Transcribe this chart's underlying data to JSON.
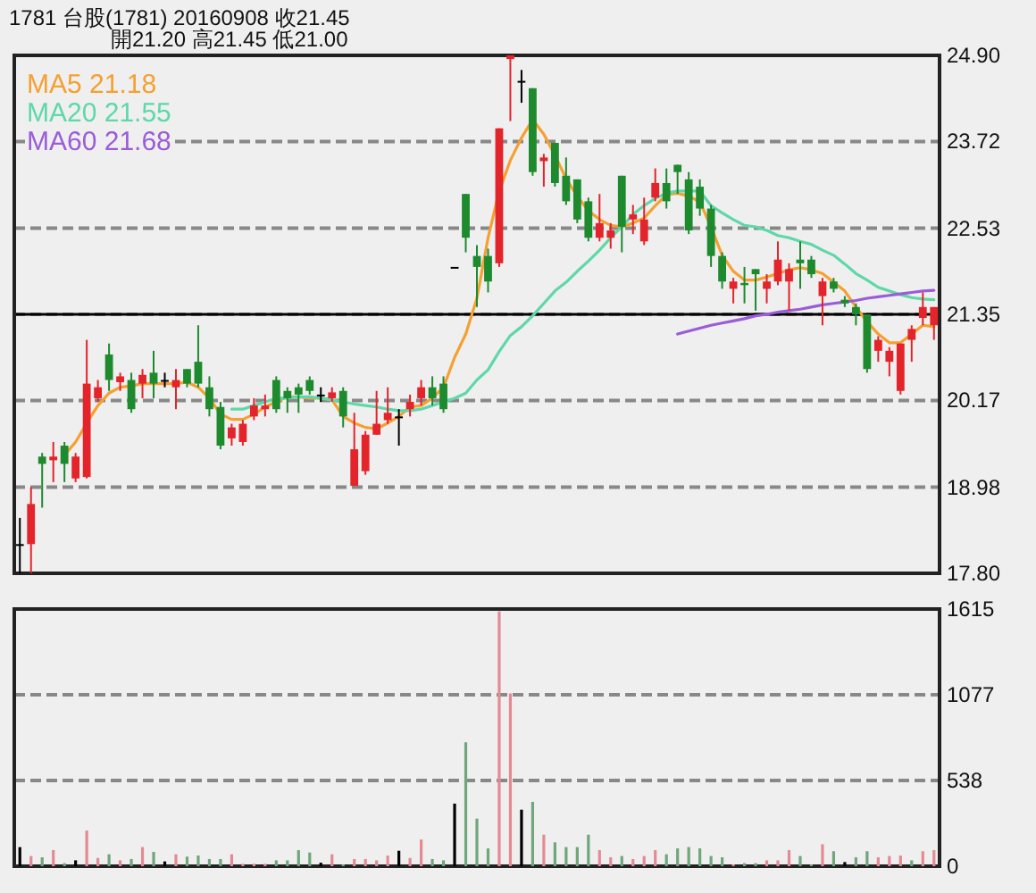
{
  "chart_data": [
    {
      "type": "candlestick",
      "title": "1781 台股(1781) 20160908 收21.45",
      "subtitle": "開21.20 高21.45 低21.00",
      "legend": "top left",
      "grid": "y",
      "tick_labels": "y",
      "ylim": [
        17.8,
        24.9
      ],
      "yticks": [
        {
          "value": 17.8,
          "label": "17.80"
        },
        {
          "value": 18.98,
          "label": "18.98"
        },
        {
          "value": 20.17,
          "label": "20.17"
        },
        {
          "value": 21.35,
          "label": "21.35"
        },
        {
          "value": 22.53,
          "label": "22.53"
        },
        {
          "value": 23.72,
          "label": "23.72"
        },
        {
          "value": 24.9,
          "label": "24.90"
        }
      ],
      "ref_lines": [
        {
          "axis": "y",
          "value": 21.35,
          "color": "#000000"
        }
      ],
      "categories": [
        null,
        null,
        null,
        null,
        null,
        null,
        null,
        null,
        null,
        null,
        null,
        null,
        null,
        null,
        null,
        null,
        null,
        null,
        null,
        null,
        null,
        null,
        null,
        null,
        null,
        null,
        null,
        null,
        null,
        null,
        null,
        null,
        null,
        null,
        null,
        null,
        null,
        null,
        null,
        null,
        null,
        null,
        null,
        null,
        null,
        null,
        null,
        null,
        null,
        null,
        null,
        null,
        null,
        null,
        null,
        null,
        null,
        null,
        null,
        null,
        null,
        null,
        null,
        null,
        null,
        null,
        null,
        null,
        null,
        null,
        null,
        null,
        null,
        null,
        null,
        null,
        null,
        null,
        null,
        null,
        null,
        null,
        null
      ],
      "ohlc": [
        [
          18.2,
          18.56,
          17.8,
          18.2
        ],
        [
          18.2,
          18.98,
          17.8,
          18.75
        ],
        [
          19.4,
          19.45,
          18.7,
          19.3
        ],
        [
          19.35,
          19.6,
          19.05,
          19.4
        ],
        [
          19.55,
          19.6,
          19.05,
          19.3
        ],
        [
          19.1,
          19.45,
          19.05,
          19.4
        ],
        [
          19.12,
          21.0,
          19.1,
          20.4
        ],
        [
          20.2,
          20.45,
          20.15,
          20.35
        ],
        [
          20.8,
          20.95,
          20.3,
          20.45
        ],
        [
          20.42,
          20.55,
          20.3,
          20.5
        ],
        [
          20.45,
          20.55,
          20.0,
          20.05
        ],
        [
          20.4,
          20.6,
          20.2,
          20.52
        ],
        [
          20.55,
          20.85,
          20.2,
          20.4
        ],
        [
          20.45,
          20.55,
          20.35,
          20.45
        ],
        [
          20.35,
          20.6,
          20.05,
          20.45
        ],
        [
          20.6,
          20.6,
          20.35,
          20.4
        ],
        [
          20.7,
          21.2,
          20.35,
          20.4
        ],
        [
          20.35,
          20.5,
          19.95,
          20.05
        ],
        [
          20.08,
          20.15,
          19.5,
          19.55
        ],
        [
          19.65,
          19.85,
          19.55,
          19.8
        ],
        [
          19.6,
          19.9,
          19.55,
          19.85
        ],
        [
          19.95,
          20.2,
          19.9,
          20.1
        ],
        [
          20.05,
          20.25,
          19.95,
          20.1
        ],
        [
          20.45,
          20.5,
          20.0,
          20.05
        ],
        [
          20.3,
          20.35,
          20.0,
          20.2
        ],
        [
          20.35,
          20.4,
          20.0,
          20.25
        ],
        [
          20.45,
          20.5,
          20.25,
          20.3
        ],
        [
          20.25,
          20.35,
          20.15,
          20.25
        ],
        [
          20.2,
          20.35,
          20.15,
          20.28
        ],
        [
          20.3,
          20.35,
          19.8,
          19.95
        ],
        [
          19.0,
          20.0,
          19.0,
          19.5
        ],
        [
          19.2,
          19.75,
          19.15,
          19.7
        ],
        [
          19.7,
          20.3,
          19.7,
          19.85
        ],
        [
          19.9,
          20.35,
          19.85,
          20.0
        ],
        [
          19.95,
          20.05,
          19.55,
          19.95
        ],
        [
          20.05,
          20.25,
          19.95,
          20.15
        ],
        [
          20.2,
          20.45,
          20.1,
          20.35
        ],
        [
          20.35,
          20.5,
          20.1,
          20.2
        ],
        [
          20.4,
          20.5,
          20.0,
          20.05
        ],
        [
          22.0,
          22.0,
          22.0,
          22.0
        ],
        [
          23.0,
          23.0,
          22.2,
          22.4
        ],
        [
          22.15,
          22.3,
          21.45,
          22.0
        ],
        [
          22.15,
          22.25,
          21.65,
          21.8
        ],
        [
          22.05,
          23.9,
          22.0,
          23.9
        ],
        [
          24.85,
          24.9,
          24.0,
          24.9
        ],
        [
          24.55,
          24.7,
          24.25,
          24.55
        ],
        [
          24.45,
          24.45,
          23.25,
          23.3
        ],
        [
          23.45,
          23.55,
          23.1,
          23.5
        ],
        [
          23.7,
          23.7,
          23.1,
          23.15
        ],
        [
          23.25,
          23.5,
          22.85,
          22.9
        ],
        [
          23.2,
          23.2,
          22.6,
          22.65
        ],
        [
          22.9,
          22.95,
          22.35,
          22.4
        ],
        [
          22.4,
          23.0,
          22.35,
          22.6
        ],
        [
          22.4,
          22.6,
          22.25,
          22.5
        ],
        [
          23.25,
          23.25,
          22.2,
          22.55
        ],
        [
          22.65,
          22.85,
          22.45,
          22.72
        ],
        [
          22.35,
          22.95,
          22.3,
          22.65
        ],
        [
          22.95,
          23.35,
          22.9,
          23.15
        ],
        [
          23.15,
          23.35,
          22.8,
          22.9
        ],
        [
          23.4,
          23.4,
          23.0,
          23.3
        ],
        [
          23.2,
          23.3,
          22.45,
          22.5
        ],
        [
          23.1,
          23.2,
          22.7,
          22.8
        ],
        [
          22.8,
          22.85,
          22.0,
          22.15
        ],
        [
          22.15,
          22.2,
          21.7,
          21.8
        ],
        [
          21.7,
          21.85,
          21.5,
          21.8
        ],
        [
          21.78,
          22.0,
          21.5,
          21.75
        ],
        [
          21.97,
          21.97,
          21.4,
          21.9
        ],
        [
          21.7,
          21.9,
          21.5,
          21.8
        ],
        [
          21.8,
          22.35,
          21.75,
          22.1
        ],
        [
          21.8,
          22.05,
          21.4,
          21.97
        ],
        [
          22.1,
          22.35,
          21.7,
          22.05
        ],
        [
          22.1,
          22.15,
          21.85,
          21.9
        ],
        [
          21.6,
          21.85,
          21.2,
          21.8
        ],
        [
          21.8,
          21.85,
          21.65,
          21.7
        ],
        [
          21.55,
          21.6,
          21.45,
          21.5
        ],
        [
          21.45,
          21.5,
          21.2,
          21.35
        ],
        [
          21.35,
          21.35,
          20.55,
          20.6
        ],
        [
          20.85,
          21.05,
          20.7,
          21.0
        ],
        [
          20.7,
          20.9,
          20.5,
          20.85
        ],
        [
          20.3,
          20.95,
          20.25,
          20.95
        ],
        [
          21.0,
          21.2,
          20.7,
          21.15
        ],
        [
          21.3,
          21.65,
          21.2,
          21.45
        ],
        [
          21.2,
          21.45,
          21.0,
          21.45
        ]
      ],
      "colors": [
        "#000000",
        "#e3242b",
        "#1e8a2e",
        "#e3242b",
        "#1e8a2e",
        "#e3242b",
        "#e3242b",
        "#e3242b",
        "#1e8a2e",
        "#e3242b",
        "#1e8a2e",
        "#e3242b",
        "#1e8a2e",
        "#000000",
        "#e3242b",
        "#1e8a2e",
        "#1e8a2e",
        "#1e8a2e",
        "#1e8a2e",
        "#e3242b",
        "#e3242b",
        "#e3242b",
        "#e3242b",
        "#1e8a2e",
        "#1e8a2e",
        "#1e8a2e",
        "#1e8a2e",
        "#000000",
        "#e3242b",
        "#1e8a2e",
        "#e3242b",
        "#e3242b",
        "#e3242b",
        "#e3242b",
        "#000000",
        "#e3242b",
        "#e3242b",
        "#1e8a2e",
        "#1e8a2e",
        "#000000",
        "#1e8a2e",
        "#1e8a2e",
        "#1e8a2e",
        "#e3242b",
        "#e3242b",
        "#000000",
        "#1e8a2e",
        "#e3242b",
        "#1e8a2e",
        "#1e8a2e",
        "#1e8a2e",
        "#1e8a2e",
        "#e3242b",
        "#e3242b",
        "#1e8a2e",
        "#e3242b",
        "#e3242b",
        "#e3242b",
        "#1e8a2e",
        "#1e8a2e",
        "#1e8a2e",
        "#1e8a2e",
        "#1e8a2e",
        "#1e8a2e",
        "#e3242b",
        "#1e8a2e",
        "#1e8a2e",
        "#e3242b",
        "#e3242b",
        "#e3242b",
        "#1e8a2e",
        "#1e8a2e",
        "#e3242b",
        "#1e8a2e",
        "#1e8a2e",
        "#1e8a2e",
        "#1e8a2e",
        "#e3242b",
        "#e3242b",
        "#e3242b",
        "#e3242b",
        "#e3242b",
        "#e3242b"
      ],
      "series": [
        {
          "name": "MA5 21.18",
          "color": "#f5a030",
          "type": "line",
          "values": [
            null,
            null,
            null,
            null,
            19.42,
            19.6,
            19.86,
            20.1,
            20.27,
            20.35,
            20.37,
            20.4,
            20.4,
            20.4,
            20.4,
            20.42,
            20.35,
            20.2,
            19.98,
            19.91,
            19.91,
            19.98,
            20.08,
            20.15,
            20.22,
            20.22,
            20.2,
            20.2,
            20.18,
            19.95,
            19.86,
            19.8,
            19.78,
            19.86,
            19.95,
            20.08,
            20.1,
            20.2,
            20.35,
            20.76,
            21.08,
            21.57,
            22.4,
            23.04,
            23.46,
            23.77,
            24.02,
            23.82,
            23.53,
            23.21,
            22.97,
            22.77,
            22.65,
            22.57,
            22.55,
            22.6,
            22.67,
            22.84,
            22.99,
            23.01,
            22.97,
            22.89,
            22.55,
            22.16,
            21.94,
            21.82,
            21.82,
            21.86,
            21.91,
            21.96,
            21.99,
            21.96,
            21.91,
            21.79,
            21.67,
            21.45,
            21.25,
            21.08,
            20.96,
            20.96,
            21.08,
            21.2,
            21.18
          ]
        },
        {
          "name": "MA20 21.55",
          "color": "#5ed8a8",
          "type": "line",
          "values": [
            null,
            null,
            null,
            null,
            null,
            null,
            null,
            null,
            null,
            null,
            null,
            null,
            null,
            null,
            null,
            null,
            null,
            null,
            null,
            20.05,
            20.05,
            20.1,
            20.15,
            20.2,
            20.2,
            20.22,
            20.22,
            20.2,
            20.18,
            20.15,
            20.12,
            20.1,
            20.08,
            20.05,
            20.03,
            20.03,
            20.05,
            20.1,
            20.15,
            20.2,
            20.27,
            20.45,
            20.59,
            20.84,
            21.06,
            21.18,
            21.33,
            21.5,
            21.67,
            21.79,
            21.94,
            22.08,
            22.23,
            22.4,
            22.55,
            22.72,
            22.84,
            22.94,
            23.01,
            23.04,
            23.04,
            23.04,
            22.84,
            22.74,
            22.65,
            22.57,
            22.55,
            22.5,
            22.43,
            22.4,
            22.35,
            22.31,
            22.23,
            22.16,
            22.04,
            21.91,
            21.82,
            21.72,
            21.67,
            21.62,
            21.58,
            21.56,
            21.55
          ]
        },
        {
          "name": "MA60 21.68",
          "color": "#9a5cd8",
          "type": "line",
          "values": [
            null,
            null,
            null,
            null,
            null,
            null,
            null,
            null,
            null,
            null,
            null,
            null,
            null,
            null,
            null,
            null,
            null,
            null,
            null,
            null,
            null,
            null,
            null,
            null,
            null,
            null,
            null,
            null,
            null,
            null,
            null,
            null,
            null,
            null,
            null,
            null,
            null,
            null,
            null,
            null,
            null,
            null,
            null,
            null,
            null,
            null,
            null,
            null,
            null,
            null,
            null,
            null,
            null,
            null,
            null,
            null,
            null,
            null,
            null,
            21.08,
            21.12,
            21.16,
            21.2,
            21.23,
            21.26,
            21.29,
            21.33,
            21.35,
            21.38,
            21.4,
            21.42,
            21.45,
            21.48,
            21.5,
            21.52,
            21.54,
            21.57,
            21.59,
            21.61,
            21.63,
            21.65,
            21.67,
            21.68
          ]
        }
      ]
    },
    {
      "type": "bar",
      "grid": "y",
      "tick_labels": "y",
      "ylim": [
        0,
        1615
      ],
      "yticks": [
        0,
        538,
        1077,
        1615
      ],
      "categories": [
        null,
        null,
        null,
        null,
        null,
        null,
        null,
        null,
        null,
        null,
        null,
        null,
        null,
        null,
        null,
        null,
        null,
        null,
        null,
        null,
        null,
        null,
        null,
        null,
        null,
        null,
        null,
        null,
        null,
        null,
        null,
        null,
        null,
        null,
        null,
        null,
        null,
        null,
        null,
        null,
        null,
        null,
        null,
        null,
        null,
        null,
        null,
        null,
        null,
        null,
        null,
        null,
        null,
        null,
        null,
        null,
        null,
        null,
        null,
        null,
        null,
        null,
        null,
        null,
        null,
        null,
        null,
        null,
        null,
        null,
        null,
        null,
        null,
        null,
        null,
        null,
        null,
        null,
        null,
        null,
        null,
        null,
        null
      ],
      "values": [
        120,
        64,
        56,
        101,
        19,
        37,
        224,
        52,
        75,
        37,
        45,
        120,
        90,
        30,
        75,
        60,
        67,
        45,
        45,
        75,
        15,
        15,
        15,
        37,
        37,
        101,
        86,
        22,
        75,
        11,
        45,
        45,
        37,
        67,
        97,
        52,
        168,
        45,
        37,
        393,
        778,
        299,
        112,
        1600,
        1085,
        355,
        404,
        198,
        150,
        120,
        120,
        198,
        101,
        56,
        64,
        45,
        64,
        101,
        75,
        112,
        120,
        112,
        64,
        56,
        11,
        19,
        19,
        37,
        37,
        101,
        64,
        11,
        138,
        94,
        26,
        56,
        94,
        56,
        64,
        67,
        37,
        94,
        101
      ],
      "colors": [
        "#000000",
        "#e48a94",
        "#6fa67a",
        "#e48a94",
        "#6fa67a",
        "#000000",
        "#e48a94",
        "#e48a94",
        "#6fa67a",
        "#e48a94",
        "#6fa67a",
        "#e48a94",
        "#6fa67a",
        "#000000",
        "#e48a94",
        "#6fa67a",
        "#6fa67a",
        "#6fa67a",
        "#6fa67a",
        "#e48a94",
        "#e48a94",
        "#e48a94",
        "#e48a94",
        "#6fa67a",
        "#6fa67a",
        "#6fa67a",
        "#6fa67a",
        "#000000",
        "#e48a94",
        "#6fa67a",
        "#e48a94",
        "#e48a94",
        "#e48a94",
        "#e48a94",
        "#000000",
        "#e48a94",
        "#e48a94",
        "#6fa67a",
        "#6fa67a",
        "#000000",
        "#6fa67a",
        "#6fa67a",
        "#6fa67a",
        "#e48a94",
        "#e48a94",
        "#000000",
        "#6fa67a",
        "#e48a94",
        "#6fa67a",
        "#6fa67a",
        "#6fa67a",
        "#6fa67a",
        "#e48a94",
        "#e48a94",
        "#6fa67a",
        "#e48a94",
        "#e48a94",
        "#e48a94",
        "#6fa67a",
        "#6fa67a",
        "#6fa67a",
        "#6fa67a",
        "#6fa67a",
        "#6fa67a",
        "#e48a94",
        "#6fa67a",
        "#6fa67a",
        "#e48a94",
        "#e48a94",
        "#e48a94",
        "#6fa67a",
        "#6fa67a",
        "#e48a94",
        "#6fa67a",
        "#000000",
        "#6fa67a",
        "#6fa67a",
        "#e48a94",
        "#e48a94",
        "#e48a94",
        "#6fa67a",
        "#e48a94",
        "#e48a94"
      ]
    }
  ]
}
